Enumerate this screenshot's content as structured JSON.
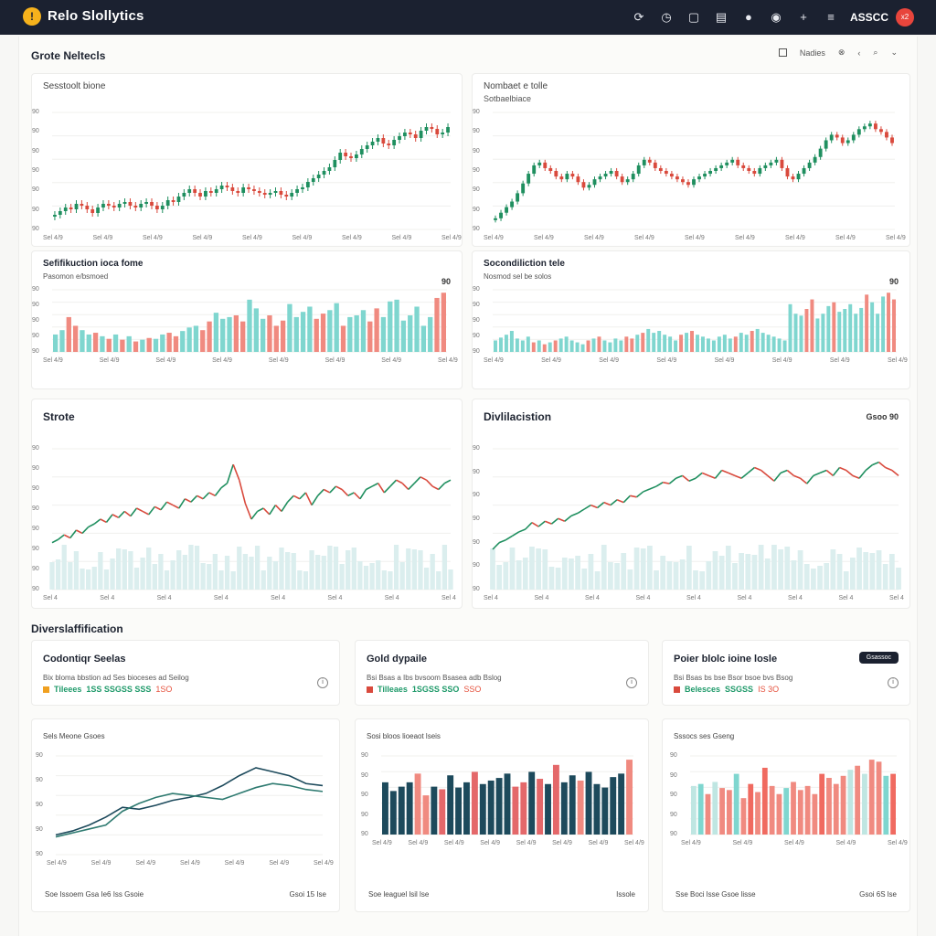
{
  "app": {
    "logo": "!",
    "title": "Relo Slollytics",
    "user": "ASSCC",
    "avatar": "x2"
  },
  "toolbar": {
    "icons": [
      {
        "name": "refresh-icon",
        "glyph": "⟳"
      },
      {
        "name": "clock-icon",
        "glyph": "◷"
      },
      {
        "name": "window-icon",
        "glyph": "▢"
      },
      {
        "name": "document-icon",
        "glyph": "▤"
      },
      {
        "name": "pin-icon",
        "glyph": "●"
      },
      {
        "name": "eye-icon",
        "glyph": "◉"
      },
      {
        "name": "add-icon",
        "glyph": "+"
      },
      {
        "name": "menu-icon",
        "glyph": "≡"
      }
    ]
  },
  "section1": {
    "title": "Grote Neltecls",
    "controls": {
      "toggle": "Nadies",
      "icon1": "⊗",
      "icon2": "‹",
      "search": "⌕",
      "more": "⌄"
    }
  },
  "section3": {
    "title": "Diverslaffification"
  },
  "colors": {
    "up": "#1f8f5f",
    "down": "#d94a3d",
    "teal": "#7fd6cf",
    "salmon": "#f08a80",
    "navy": "#1d4a5c",
    "light": "#dbeeee"
  },
  "cards": {
    "c1": {
      "title": "Sesstoolt bione",
      "sub": "",
      "yticks": [
        "90",
        "90",
        "90",
        "90",
        "90",
        "90",
        "90"
      ],
      "xticks": [
        "Sel 4/9",
        "Sel 4/9",
        "Sel 4/9",
        "Sel 4/9",
        "Sel 4/9",
        "Sel 4/9",
        "Sel 4/9",
        "Sel 4/9",
        "Sel 4/9"
      ]
    },
    "c2": {
      "title": "Nombaet e tolle",
      "sub": "Sotbaelbiace",
      "yticks": [
        "90",
        "90",
        "90",
        "90",
        "90",
        "90",
        "90"
      ],
      "xticks": [
        "Sel 4/9",
        "Sel 4/9",
        "Sel 4/9",
        "Sel 4/9",
        "Sel 4/9",
        "Sel 4/9",
        "Sel 4/9",
        "Sel 4/9",
        "Sel 4/9"
      ]
    },
    "c3": {
      "title": "Sefifikuction ioca fome",
      "sub": "Pasomon e/bsmoed",
      "right": "90",
      "yticks": [
        "90",
        "90",
        "90",
        "90",
        "90"
      ],
      "xticks": [
        "Sel 4/9",
        "Sel 4/9",
        "Sel 4/9",
        "Sel 4/9",
        "Sel 4/9",
        "Sel 4/9",
        "Sel 4/9",
        "Sel 4/9"
      ]
    },
    "c4": {
      "title": "Socondiliction tele",
      "sub": "Nosmod sel be solos",
      "right": "90",
      "yticks": [
        "90",
        "90",
        "90",
        "90",
        "90"
      ],
      "xticks": [
        "Sel 4/9",
        "Sel 4/9",
        "Sel 4/9",
        "Sel 4/9",
        "Sel 4/9",
        "Sel 4/9",
        "Sel 4/9",
        "Sel 4/9"
      ]
    },
    "c5": {
      "title": "Strote",
      "yticks": [
        "90",
        "90",
        "90",
        "90",
        "90",
        "90",
        "90",
        "90"
      ],
      "xticks": [
        "Sel 4",
        "Sel 4",
        "Sel 4",
        "Sel 4",
        "Sel 4",
        "Sel 4",
        "Sel 4",
        "Sel 4"
      ]
    },
    "c6": {
      "title": "Divlilacistion",
      "right": "Gsoo 90",
      "yticks": [
        "90",
        "90",
        "90",
        "90",
        "90",
        "90",
        "90"
      ],
      "xticks": [
        "Sel 4",
        "Sel 4",
        "Sel 4",
        "Sel 4",
        "Sel 4",
        "Sel 4",
        "Sel 4",
        "Sel 4",
        "Sel 4"
      ]
    }
  },
  "info": [
    {
      "title": "Codontiqr Seelas",
      "sub": "Bix bloma bbstion ad Ses bioceses ad Seilog",
      "stat_label": "Tileees",
      "stat_values": "1SS SSGSS SSS",
      "stat_accent": "1SO",
      "square": "#f0a020"
    },
    {
      "title": "Gold dypaile",
      "sub": "Bsi Bsas a Ibs bvsoom Bsasea adb Bslog",
      "stat_label": "Tilleaes",
      "stat_values": "1SGSS SSO",
      "stat_accent": "SSO",
      "square": "#d94a3d"
    },
    {
      "title": "Poier blolc ioine losle",
      "sub": "Bsi Bsas bs bse Bsor bsoe bvs Bsog",
      "stat_label": "Belesces",
      "stat_values": "SSGSS",
      "stat_accent": "IS 3O",
      "square": "#d94a3d",
      "pill": "Gsassoc"
    }
  ],
  "bottom": [
    {
      "title": "Sels Meone Gsoes",
      "yticks": [
        "90",
        "90",
        "90",
        "90",
        "90"
      ],
      "xticks": [
        "Sel 4/9",
        "Sel 4/9",
        "Sel 4/9",
        "Sel 4/9",
        "Sel 4/9",
        "Sel 4/9",
        "Sel 4/9"
      ],
      "foot_left": "Soe Issoem Gsa Ie6 Iss Gsoie",
      "foot_right": "Gsoi 15 Ise"
    },
    {
      "title": "Sosi bloos lioeaot lseis",
      "yticks": [
        "90",
        "90",
        "90",
        "90",
        "90"
      ],
      "xticks": [
        "Sel 4/9",
        "Sel 4/9",
        "Sel 4/9",
        "Sel 4/9",
        "Sel 4/9",
        "Sel 4/9",
        "Sel 4/9",
        "Sel 4/9"
      ],
      "foot_left": "Soe leaguel lsil lse",
      "foot_right": "Issole"
    },
    {
      "title": "Sssocs ses Gseng",
      "yticks": [
        "90",
        "90",
        "90",
        "90",
        "90"
      ],
      "xticks": [
        "Sel 4/9",
        "Sel 4/9",
        "Sel 4/9",
        "Sel 4/9",
        "Sel 4/9"
      ],
      "foot_left": "Sse Boci lsse Gsoe lisse",
      "foot_right": "Gsoi 6S lse"
    }
  ],
  "chart_data": [
    {
      "type": "candlestick",
      "name": "c1",
      "values": [
        40,
        42,
        44,
        43,
        46,
        45,
        43,
        41,
        44,
        46,
        45,
        44,
        46,
        47,
        45,
        44,
        46,
        47,
        45,
        43,
        45,
        48,
        47,
        50,
        52,
        54,
        52,
        50,
        53,
        52,
        54,
        56,
        55,
        53,
        52,
        55,
        54,
        53,
        52,
        51,
        52,
        53,
        51,
        50,
        52,
        54,
        55,
        58,
        60,
        62,
        64,
        66,
        70,
        74,
        72,
        71,
        73,
        76,
        78,
        80,
        82,
        79,
        78,
        81,
        83,
        85,
        84,
        82,
        86,
        88,
        87,
        84,
        85,
        88
      ]
    },
    {
      "type": "candlestick",
      "name": "c2",
      "values": [
        30,
        34,
        38,
        42,
        48,
        55,
        62,
        68,
        70,
        66,
        64,
        60,
        58,
        62,
        60,
        56,
        52,
        54,
        58,
        60,
        62,
        64,
        60,
        56,
        58,
        62,
        68,
        72,
        70,
        66,
        64,
        62,
        60,
        58,
        56,
        54,
        58,
        60,
        62,
        64,
        66,
        68,
        70,
        72,
        68,
        66,
        64,
        62,
        66,
        68,
        70,
        72,
        66,
        60,
        58,
        62,
        66,
        70,
        74,
        80,
        86,
        90,
        88,
        84,
        86,
        90,
        94,
        96,
        98,
        94,
        92,
        88,
        84
      ]
    },
    {
      "type": "bar",
      "name": "c3",
      "values": [
        20,
        25,
        40,
        30,
        25,
        20,
        22,
        18,
        15,
        20,
        14,
        18,
        12,
        14,
        16,
        15,
        20,
        22,
        18,
        24,
        28,
        30,
        25,
        35,
        45,
        38,
        40,
        42,
        35,
        60,
        50,
        38,
        42,
        30,
        36,
        55,
        40,
        46,
        52,
        38,
        44,
        48,
        56,
        30,
        40,
        42,
        48,
        35,
        50,
        40,
        58,
        60,
        36,
        42,
        52,
        30,
        40,
        62,
        68
      ]
    },
    {
      "type": "bar",
      "name": "c4",
      "values": [
        12,
        15,
        18,
        22,
        14,
        12,
        16,
        10,
        12,
        8,
        10,
        12,
        14,
        16,
        12,
        10,
        8,
        12,
        14,
        16,
        12,
        10,
        14,
        12,
        16,
        14,
        18,
        20,
        24,
        20,
        22,
        18,
        16,
        12,
        18,
        20,
        22,
        18,
        16,
        14,
        12,
        16,
        18,
        14,
        16,
        20,
        18,
        22,
        24,
        20,
        18,
        16,
        14,
        12,
        50,
        40,
        38,
        45,
        55,
        35,
        40,
        48,
        52,
        42,
        45,
        50,
        40,
        46,
        60,
        52,
        40,
        58,
        62,
        55
      ]
    },
    {
      "type": "line",
      "name": "c5",
      "values": [
        40,
        42,
        45,
        43,
        48,
        46,
        50,
        52,
        55,
        53,
        58,
        56,
        60,
        57,
        62,
        60,
        58,
        63,
        61,
        66,
        64,
        62,
        68,
        66,
        70,
        68,
        72,
        70,
        75,
        78,
        90,
        80,
        65,
        55,
        60,
        62,
        58,
        64,
        60,
        66,
        70,
        68,
        72,
        64,
        70,
        74,
        72,
        76,
        74,
        70,
        72,
        68,
        74,
        76,
        78,
        72,
        76,
        80,
        78,
        74,
        78,
        82,
        80,
        76,
        74,
        78,
        80
      ]
    },
    {
      "type": "line",
      "name": "c6",
      "values": [
        25,
        30,
        32,
        35,
        38,
        40,
        45,
        42,
        46,
        44,
        48,
        46,
        50,
        52,
        55,
        58,
        56,
        60,
        58,
        62,
        60,
        65,
        64,
        68,
        70,
        72,
        75,
        74,
        78,
        80,
        76,
        78,
        82,
        80,
        78,
        84,
        82,
        80,
        78,
        82,
        86,
        84,
        80,
        76,
        82,
        84,
        80,
        78,
        74,
        80,
        82,
        84,
        80,
        86,
        84,
        80,
        78,
        84,
        88,
        90,
        86,
        84,
        80
      ]
    },
    {
      "type": "line",
      "name": "b1",
      "series": [
        {
          "name": "",
          "values": [
            20,
            24,
            30,
            38,
            48,
            46,
            50,
            55,
            58,
            62,
            70,
            80,
            88,
            84,
            80,
            72,
            70
          ]
        },
        {
          "name": "",
          "values": [
            18,
            22,
            26,
            30,
            44,
            52,
            58,
            62,
            60,
            58,
            56,
            62,
            68,
            72,
            70,
            66,
            64
          ]
        }
      ]
    },
    {
      "type": "bar",
      "name": "b2",
      "values": [
        60,
        50,
        55,
        60,
        70,
        45,
        55,
        52,
        68,
        54,
        60,
        72,
        58,
        62,
        65,
        70,
        55,
        60,
        72,
        64,
        58,
        80,
        60,
        68,
        62,
        72,
        58,
        54,
        66,
        70,
        86
      ]
    },
    {
      "type": "bar",
      "name": "b3",
      "values": [
        48,
        50,
        40,
        52,
        46,
        44,
        60,
        36,
        50,
        42,
        66,
        48,
        40,
        46,
        52,
        44,
        48,
        40,
        60,
        56,
        50,
        58,
        64,
        68,
        60,
        74,
        72,
        58,
        60
      ]
    }
  ]
}
